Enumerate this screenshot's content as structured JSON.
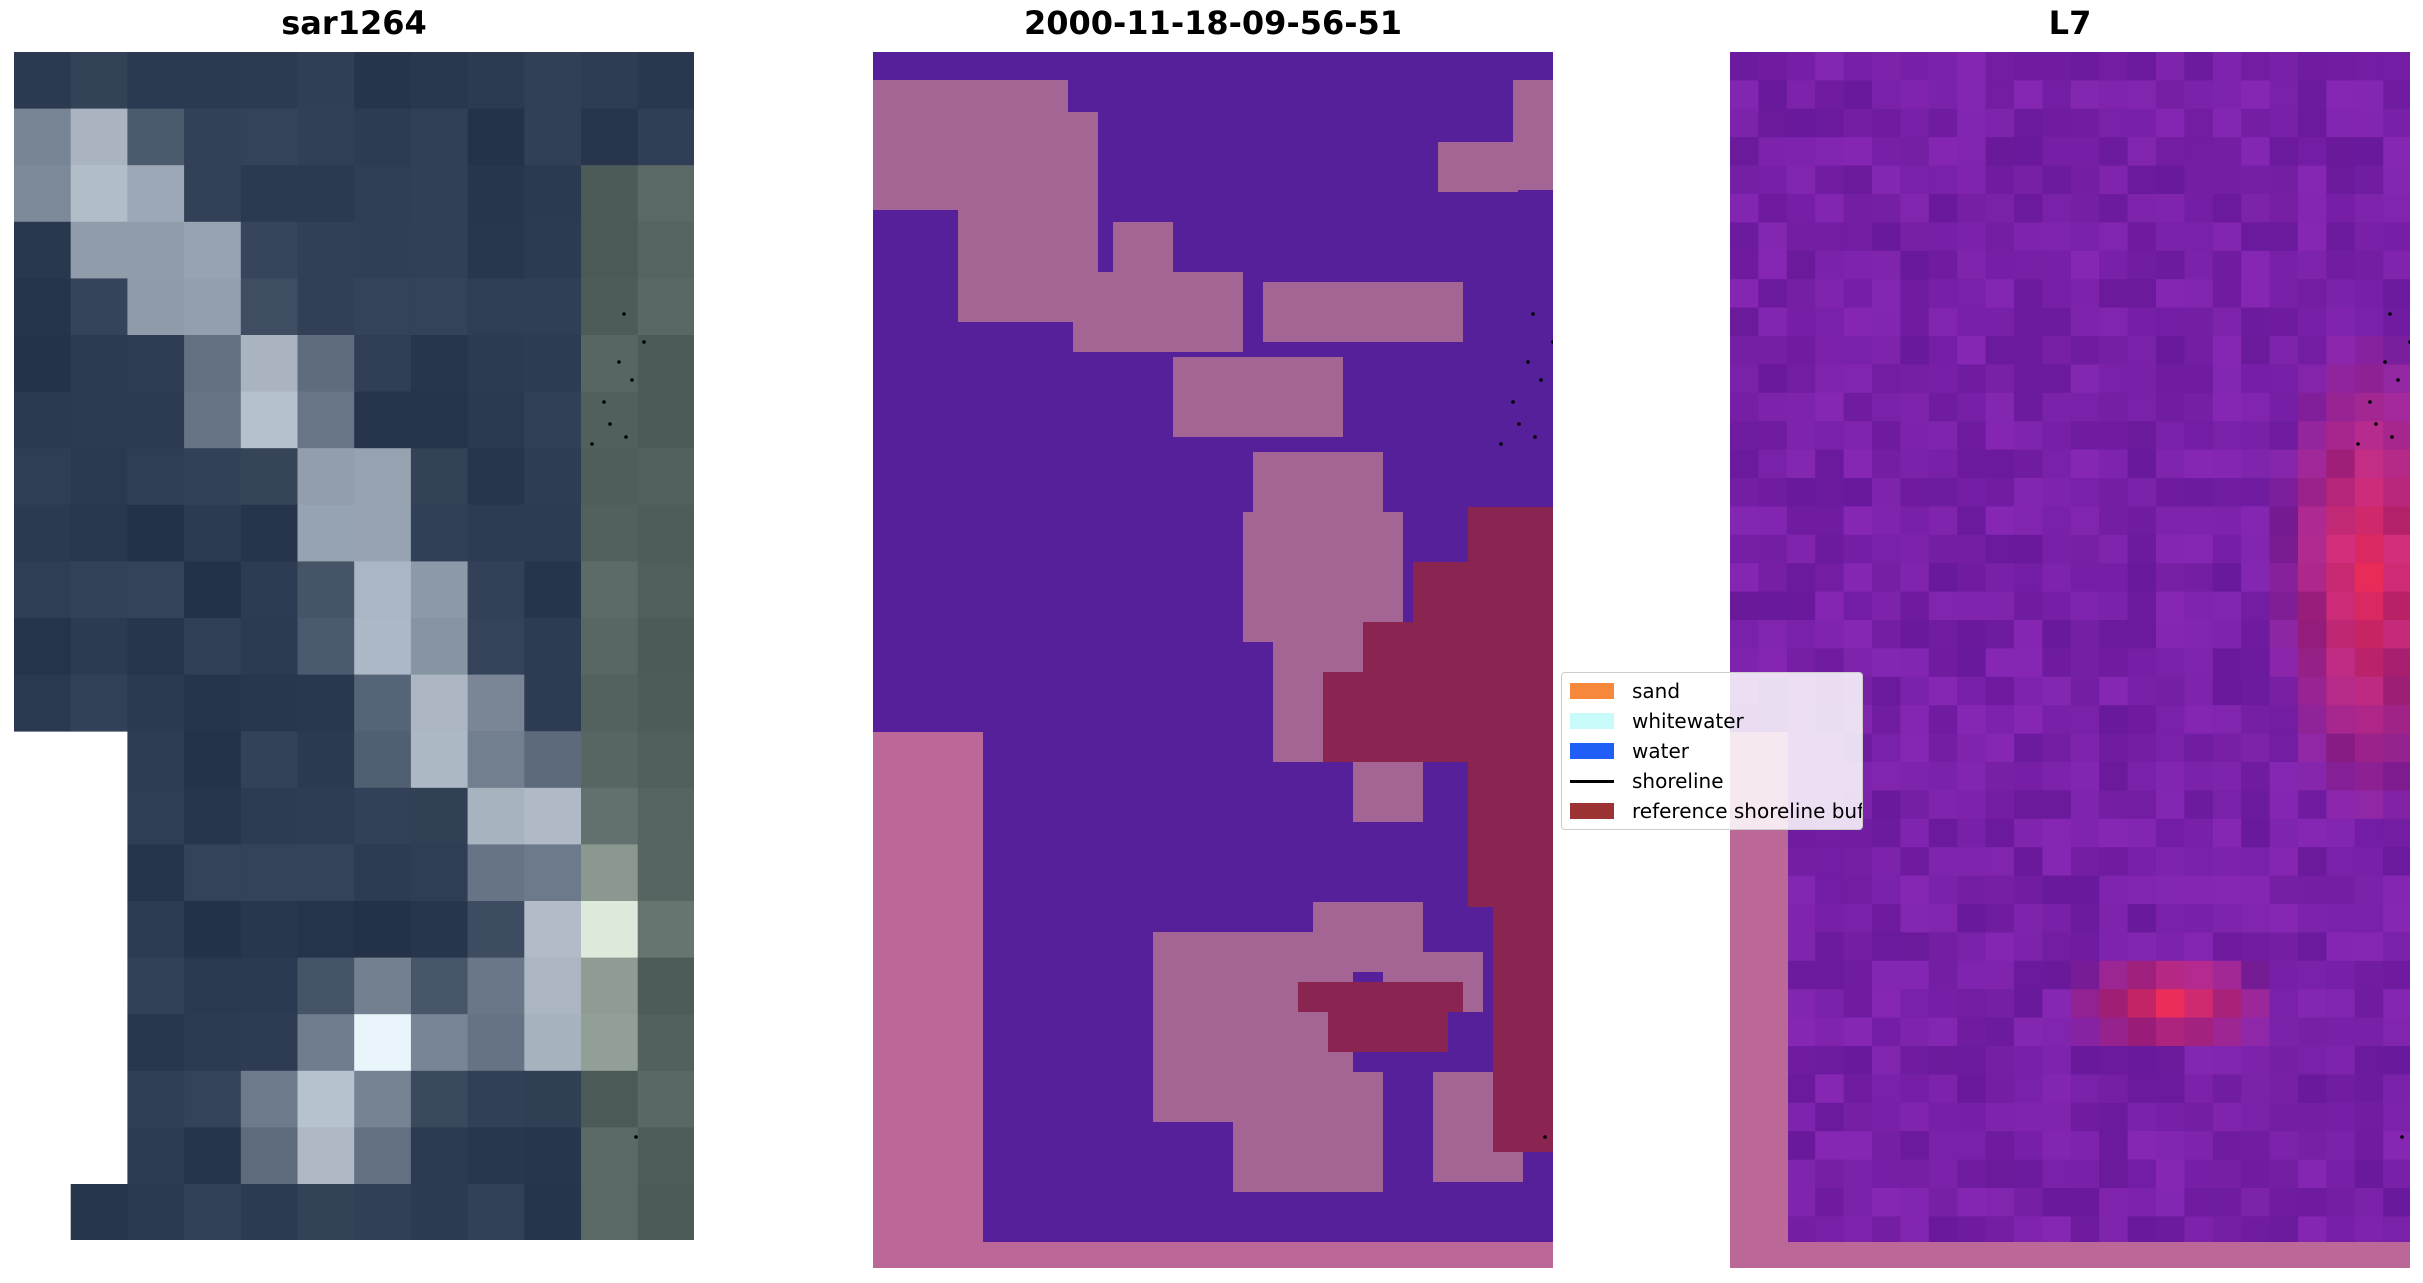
{
  "panels": [
    {
      "title": "sar1264"
    },
    {
      "title": "2000-11-18-09-56-51"
    },
    {
      "title": "L7"
    }
  ],
  "legend": [
    {
      "label": "sand",
      "color": "#f5883a",
      "kind": "swatch"
    },
    {
      "label": "whitewater",
      "color": "#c8fafa",
      "kind": "swatch"
    },
    {
      "label": "water",
      "color": "#1f5ff5",
      "kind": "swatch"
    },
    {
      "label": "shoreline",
      "color": "#000000",
      "kind": "line"
    },
    {
      "label": "reference shoreline buffer",
      "color": "#9b3333",
      "kind": "swatch"
    }
  ],
  "colors": {
    "classification_background": "#55209a",
    "classification_land": "#a46595",
    "buffer": "#8a2552",
    "nodata": "#bb6797"
  }
}
